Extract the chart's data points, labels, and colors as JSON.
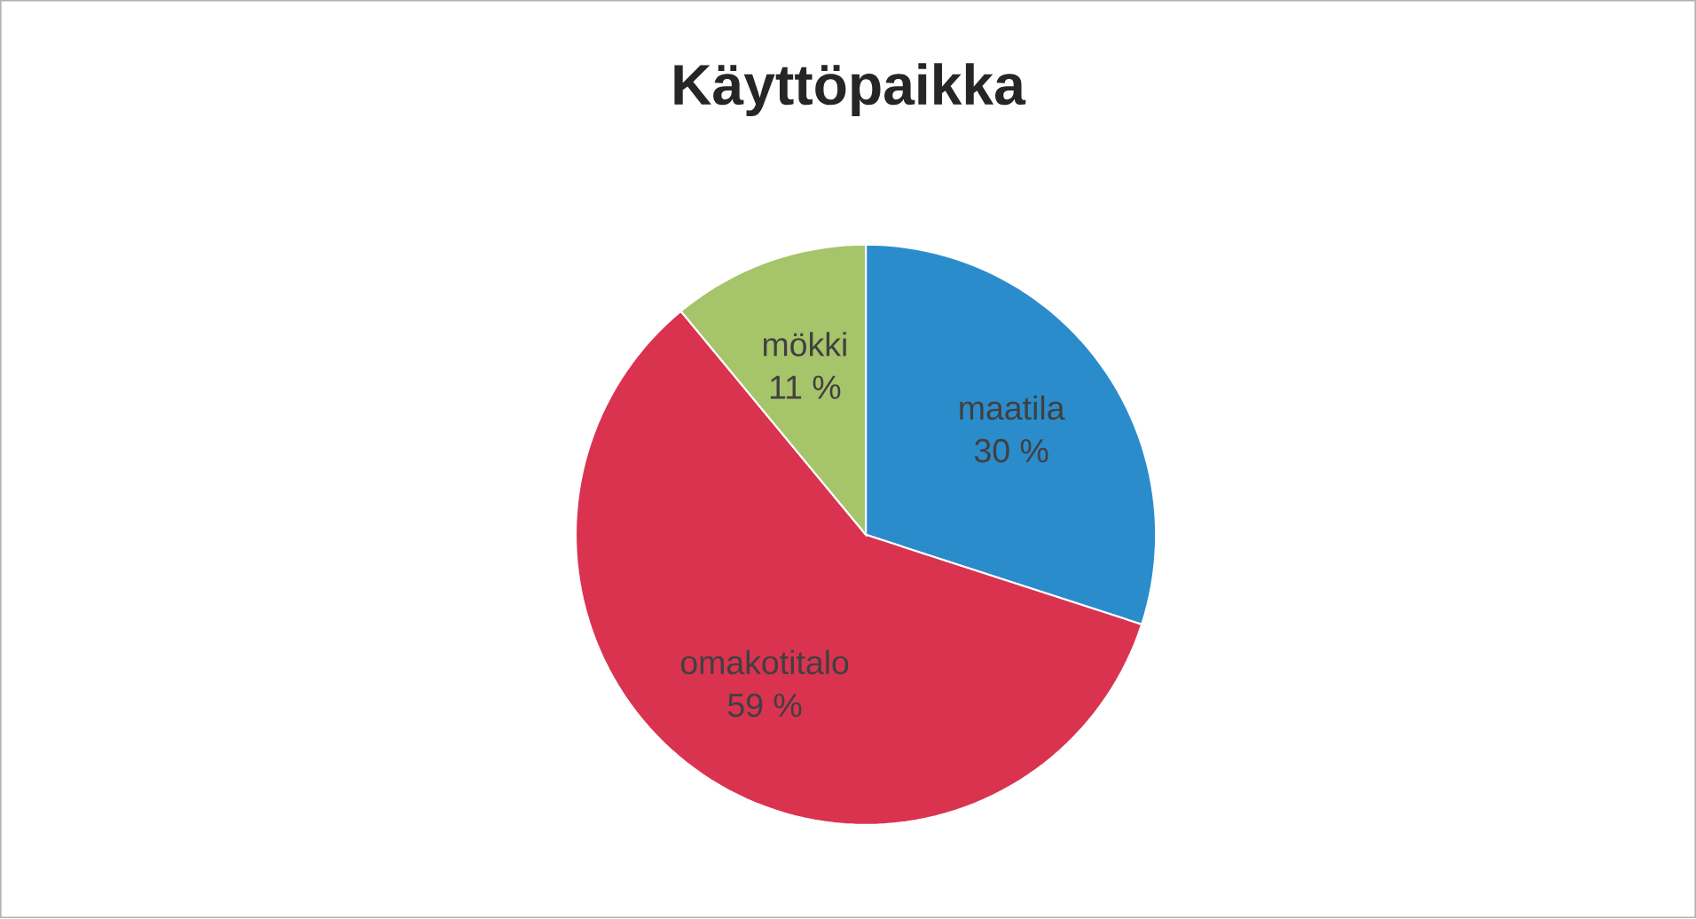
{
  "chart_data": {
    "type": "pie",
    "title": "Käyttöpaikka",
    "categories": [
      "maatila",
      "omakotitalo",
      "mökki"
    ],
    "values": [
      30,
      59,
      11
    ],
    "colors": [
      "#2b8ccb",
      "#d93350",
      "#a6c46a"
    ],
    "value_labels": [
      "30 %",
      "59 %",
      "11 %"
    ]
  }
}
